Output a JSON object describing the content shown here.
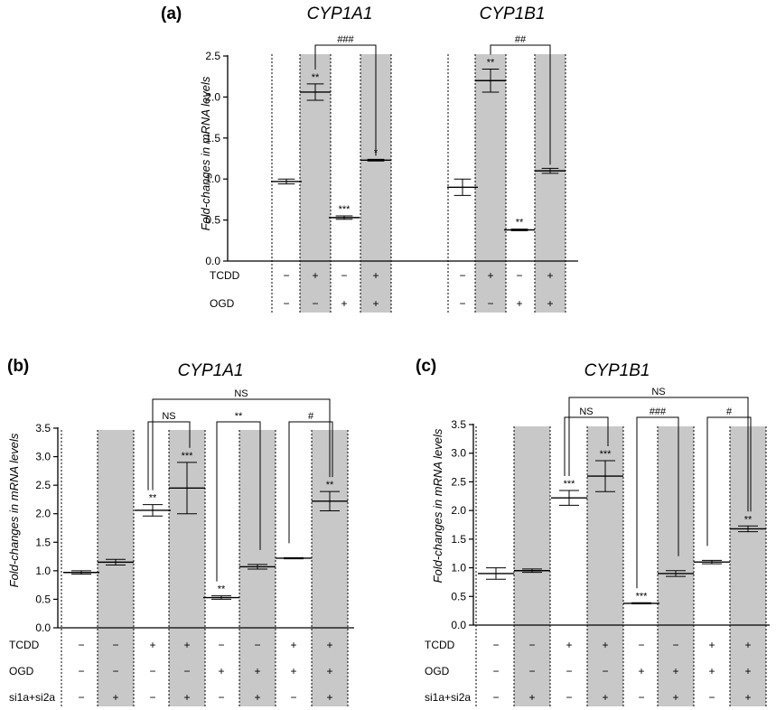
{
  "chart_data": [
    {
      "type": "bar",
      "panel_label": "(a)",
      "ylabel": "Fold-changes in mRNA levels",
      "ylim": [
        0,
        2.5
      ],
      "yticks": [
        "0.0",
        "0.5",
        "1.0",
        "1.5",
        "2.0",
        "2.5"
      ],
      "groups": [
        {
          "title": "CYP1A1",
          "values": [
            0.97,
            2.06,
            0.53,
            1.23
          ],
          "errors": [
            0.03,
            0.1,
            0.02,
            0.01
          ],
          "shaded": [
            false,
            true,
            false,
            true
          ],
          "sig": [
            "",
            "**",
            "***",
            "*"
          ],
          "brackets": [
            {
              "from": 1,
              "to": 3,
              "label": "###"
            }
          ]
        },
        {
          "title": "CYP1B1",
          "values": [
            0.9,
            2.2,
            0.38,
            1.1
          ],
          "errors": [
            0.1,
            0.14,
            0.01,
            0.03
          ],
          "shaded": [
            false,
            true,
            false,
            true
          ],
          "sig": [
            "",
            "**",
            "**",
            ""
          ],
          "brackets": [
            {
              "from": 1,
              "to": 3,
              "label": "##"
            }
          ]
        }
      ],
      "conditions": [
        {
          "label": "TCDD",
          "signs": [
            "−",
            "+",
            "−",
            "+"
          ]
        },
        {
          "label": "OGD",
          "signs": [
            "−",
            "−",
            "+",
            "+"
          ]
        }
      ]
    },
    {
      "type": "bar",
      "panel_label": "(b)",
      "title": "CYP1A1",
      "ylabel": "Fold-changes in mRNA levels",
      "ylim": [
        0,
        3.5
      ],
      "yticks": [
        "0.0",
        "0.5",
        "1.0",
        "1.5",
        "2.0",
        "2.5",
        "3.0",
        "3.5"
      ],
      "values": [
        0.97,
        1.15,
        2.06,
        2.45,
        0.53,
        1.07,
        1.22,
        2.22
      ],
      "errors": [
        0.03,
        0.05,
        0.1,
        0.45,
        0.03,
        0.04,
        0.01,
        0.17
      ],
      "shaded": [
        false,
        true,
        false,
        true,
        false,
        true,
        false,
        true
      ],
      "sig": [
        "",
        "",
        "**",
        "***",
        "**",
        "",
        "",
        "**"
      ],
      "brackets": [
        {
          "from": 2,
          "to": 3,
          "label": "NS",
          "level": 1
        },
        {
          "from": 4,
          "to": 5,
          "label": "**",
          "level": 1
        },
        {
          "from": 6,
          "to": 7,
          "label": "#",
          "level": 1
        },
        {
          "from": 2,
          "to": 7,
          "label": "NS",
          "level": 2
        }
      ],
      "conditions": [
        {
          "label": "TCDD",
          "signs": [
            "−",
            "−",
            "+",
            "+",
            "−",
            "−",
            "+",
            "+"
          ]
        },
        {
          "label": "OGD",
          "signs": [
            "−",
            "−",
            "−",
            "−",
            "+",
            "+",
            "+",
            "+"
          ]
        },
        {
          "label": "si1a+si2a",
          "signs": [
            "−",
            "+",
            "−",
            "+",
            "−",
            "+",
            "−",
            "+"
          ]
        }
      ]
    },
    {
      "type": "bar",
      "panel_label": "(c)",
      "title": "CYP1B1",
      "ylabel": "Fold-changes in mRNA levels",
      "ylim": [
        0,
        3.5
      ],
      "yticks": [
        "0.0",
        "0.5",
        "1.0",
        "1.5",
        "2.0",
        "2.5",
        "3.0",
        "3.5"
      ],
      "values": [
        0.9,
        0.95,
        2.22,
        2.6,
        0.38,
        0.9,
        1.1,
        1.68
      ],
      "errors": [
        0.1,
        0.03,
        0.13,
        0.27,
        0.01,
        0.05,
        0.03,
        0.05
      ],
      "shaded": [
        false,
        true,
        false,
        true,
        false,
        true,
        false,
        true
      ],
      "sig": [
        "",
        "",
        "***",
        "***",
        "***",
        "",
        "",
        "**"
      ],
      "brackets": [
        {
          "from": 2,
          "to": 3,
          "label": "NS",
          "level": 1
        },
        {
          "from": 4,
          "to": 5,
          "label": "###",
          "level": 1
        },
        {
          "from": 6,
          "to": 7,
          "label": "#",
          "level": 1
        },
        {
          "from": 2,
          "to": 7,
          "label": "NS",
          "level": 2
        }
      ],
      "conditions": [
        {
          "label": "TCDD",
          "signs": [
            "−",
            "−",
            "+",
            "+",
            "−",
            "−",
            "+",
            "+"
          ]
        },
        {
          "label": "OGD",
          "signs": [
            "−",
            "−",
            "−",
            "−",
            "+",
            "+",
            "+",
            "+"
          ]
        },
        {
          "label": "si1a+si2a",
          "signs": [
            "−",
            "+",
            "−",
            "+",
            "−",
            "+",
            "−",
            "+"
          ]
        }
      ]
    }
  ]
}
